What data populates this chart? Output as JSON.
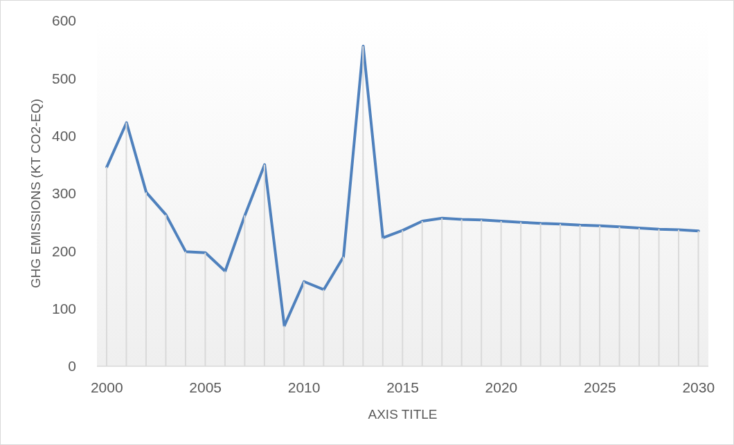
{
  "chart_data": {
    "type": "line",
    "xlabel": "AXIS TITLE",
    "ylabel": "GHG EMISSIONS (KT CO2-EQ)",
    "x": [
      2000,
      2001,
      2002,
      2003,
      2004,
      2005,
      2006,
      2007,
      2008,
      2009,
      2010,
      2011,
      2012,
      2013,
      2014,
      2015,
      2016,
      2017,
      2018,
      2019,
      2020,
      2021,
      2022,
      2023,
      2024,
      2025,
      2026,
      2027,
      2028,
      2029,
      2030
    ],
    "series": [
      {
        "color": "#4f81bd",
        "values": [
          346,
          423,
          302,
          263,
          199,
          197,
          165,
          262,
          350,
          70,
          147,
          133,
          190,
          556,
          223,
          236,
          252,
          257,
          255,
          254,
          252,
          250,
          248,
          247,
          245,
          244,
          242,
          240,
          238,
          237,
          235
        ]
      },
      {
        "type": "bar",
        "color": "#d9d9d9",
        "values": [
          346,
          423,
          302,
          263,
          199,
          197,
          165,
          262,
          350,
          70,
          147,
          133,
          190,
          556,
          223,
          236,
          252,
          257,
          255,
          254,
          252,
          250,
          248,
          247,
          245,
          244,
          242,
          240,
          238,
          237,
          235
        ]
      }
    ],
    "xlim": [
      1999.5,
      2030.5
    ],
    "xticks": [
      2000,
      2005,
      2010,
      2015,
      2020,
      2025,
      2030
    ],
    "ylim": [
      0,
      600
    ],
    "yticks": [
      0,
      100,
      200,
      300,
      400,
      500,
      600
    ],
    "line_style": "solid"
  }
}
